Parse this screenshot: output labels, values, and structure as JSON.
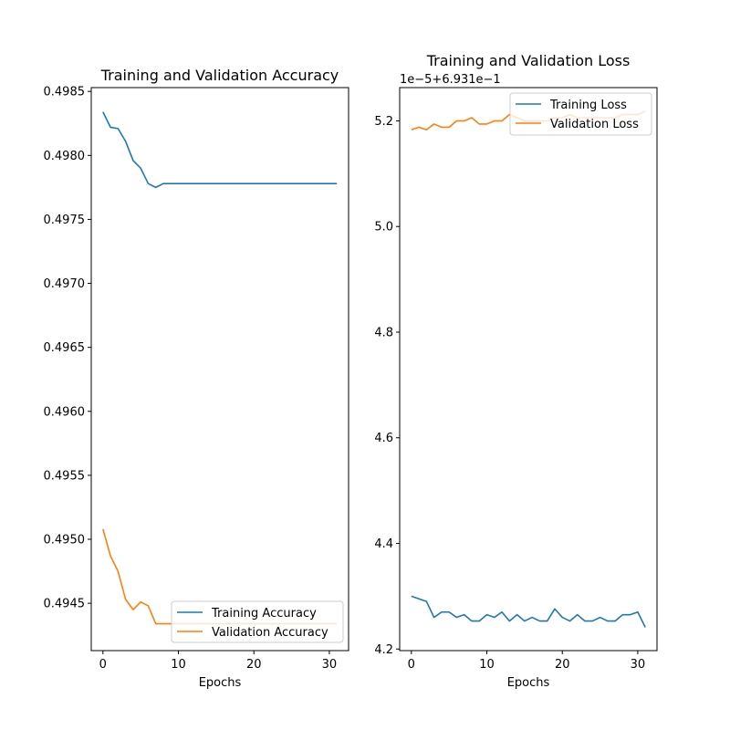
{
  "chart_data": [
    {
      "type": "line",
      "title": "Training and Validation Accuracy",
      "xlabel": "Epochs",
      "ylabel": "",
      "xlim": [
        -1.55,
        32.55
      ],
      "ylim": [
        0.49413,
        0.49853
      ],
      "xticks": [
        0,
        10,
        20,
        30
      ],
      "yticks": [
        0.4945,
        0.495,
        0.4955,
        0.496,
        0.4965,
        0.497,
        0.4975,
        0.498,
        0.4985
      ],
      "ytick_labels": [
        "0.4945",
        "0.4950",
        "0.4955",
        "0.4960",
        "0.4965",
        "0.4970",
        "0.4975",
        "0.4980",
        "0.4985"
      ],
      "offset_text": "",
      "legend_position": "lower right",
      "grid": false,
      "x": [
        0,
        1,
        2,
        3,
        4,
        5,
        6,
        7,
        8,
        9,
        10,
        11,
        12,
        13,
        14,
        15,
        16,
        17,
        18,
        19,
        20,
        21,
        22,
        23,
        24,
        25,
        26,
        27,
        28,
        29,
        30,
        31
      ],
      "series": [
        {
          "name": "Training Accuracy",
          "color": "#1f77b4",
          "values": [
            0.49834,
            0.49822,
            0.49821,
            0.49811,
            0.49796,
            0.4979,
            0.49778,
            0.49775,
            0.49778,
            0.49778,
            0.49778,
            0.49778,
            0.49778,
            0.49778,
            0.49778,
            0.49778,
            0.49778,
            0.49778,
            0.49778,
            0.49778,
            0.49778,
            0.49778,
            0.49778,
            0.49778,
            0.49778,
            0.49778,
            0.49778,
            0.49778,
            0.49778,
            0.49778,
            0.49778,
            0.49778
          ]
        },
        {
          "name": "Validation Accuracy",
          "color": "#ff7f0e",
          "values": [
            0.49508,
            0.49487,
            0.49475,
            0.49453,
            0.49445,
            0.49451,
            0.49448,
            0.49434,
            0.49434,
            0.49434,
            0.49434,
            0.49434,
            0.49434,
            0.49434,
            0.49434,
            0.49434,
            0.49434,
            0.49434,
            0.49434,
            0.49434,
            0.49434,
            0.49434,
            0.49434,
            0.49434,
            0.49434,
            0.49434,
            0.49434,
            0.49434,
            0.49434,
            0.49434,
            0.49434,
            0.49434
          ]
        }
      ]
    },
    {
      "type": "line",
      "title": "Training and Validation Loss",
      "xlabel": "Epochs",
      "ylabel": "",
      "xlim": [
        -1.55,
        32.55
      ],
      "ylim": [
        4.197,
        5.263
      ],
      "xticks": [
        0,
        10,
        20,
        30
      ],
      "yticks": [
        4.2,
        4.4,
        4.6,
        4.8,
        5.0,
        5.2
      ],
      "ytick_labels": [
        "4.2",
        "4.4",
        "4.6",
        "4.8",
        "5.0",
        "5.2"
      ],
      "offset_text": "1e−5+6.931e−1",
      "legend_position": "upper right",
      "grid": false,
      "x": [
        0,
        1,
        2,
        3,
        4,
        5,
        6,
        7,
        8,
        9,
        10,
        11,
        12,
        13,
        14,
        15,
        16,
        17,
        18,
        19,
        20,
        21,
        22,
        23,
        24,
        25,
        26,
        27,
        28,
        29,
        30,
        31
      ],
      "series": [
        {
          "name": "Training Loss",
          "color": "#1f77b4",
          "values": [
            4.3,
            4.295,
            4.29,
            4.26,
            4.27,
            4.27,
            4.26,
            4.265,
            4.253,
            4.253,
            4.265,
            4.26,
            4.27,
            4.253,
            4.265,
            4.253,
            4.26,
            4.253,
            4.253,
            4.276,
            4.26,
            4.253,
            4.265,
            4.253,
            4.253,
            4.26,
            4.253,
            4.253,
            4.265,
            4.265,
            4.27,
            4.241
          ]
        },
        {
          "name": "Validation Loss",
          "color": "#ff7f0e",
          "values": [
            5.183,
            5.188,
            5.183,
            5.194,
            5.188,
            5.188,
            5.2,
            5.2,
            5.206,
            5.194,
            5.194,
            5.2,
            5.2,
            5.212,
            5.206,
            5.2,
            5.2,
            5.2,
            5.2,
            5.206,
            5.206,
            5.212,
            5.206,
            5.206,
            5.206,
            5.206,
            5.206,
            5.206,
            5.212,
            5.212,
            5.212,
            5.218
          ]
        }
      ]
    }
  ]
}
